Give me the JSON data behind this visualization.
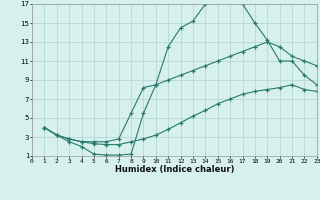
{
  "title": "",
  "xlabel": "Humidex (Indice chaleur)",
  "bg_color": "#d6f0ee",
  "grid_color": "#b8d8d4",
  "line_color": "#2a7a6a",
  "xlim": [
    0,
    23
  ],
  "ylim": [
    1,
    17
  ],
  "xticks": [
    0,
    1,
    2,
    3,
    4,
    5,
    6,
    7,
    8,
    9,
    10,
    11,
    12,
    13,
    14,
    15,
    16,
    17,
    18,
    19,
    20,
    21,
    22,
    23
  ],
  "yticks": [
    1,
    3,
    5,
    7,
    9,
    11,
    13,
    15,
    17
  ],
  "line1_x": [
    1,
    2,
    3,
    4,
    5,
    6,
    7,
    8,
    9,
    10,
    11,
    12,
    13,
    14,
    15,
    16,
    17,
    18,
    19,
    20,
    21,
    22,
    23
  ],
  "line1_y": [
    4.0,
    3.2,
    2.5,
    2.0,
    1.2,
    1.1,
    1.1,
    1.2,
    5.5,
    8.5,
    12.5,
    14.5,
    15.2,
    17.0,
    17.5,
    17.5,
    17.0,
    15.0,
    13.2,
    11.0,
    11.0,
    9.5,
    8.5
  ],
  "line2_x": [
    1,
    2,
    3,
    4,
    5,
    6,
    7,
    8,
    9,
    10,
    11,
    12,
    13,
    14,
    15,
    16,
    17,
    18,
    19,
    20,
    21,
    22,
    23
  ],
  "line2_y": [
    4.0,
    3.2,
    2.8,
    2.5,
    2.5,
    2.5,
    2.8,
    5.5,
    8.2,
    8.5,
    9.0,
    9.5,
    10.0,
    10.5,
    11.0,
    11.5,
    12.0,
    12.5,
    13.0,
    12.5,
    11.5,
    11.0,
    10.5
  ],
  "line3_x": [
    1,
    2,
    3,
    4,
    5,
    6,
    7,
    8,
    9,
    10,
    11,
    12,
    13,
    14,
    15,
    16,
    17,
    18,
    19,
    20,
    21,
    22,
    23
  ],
  "line3_y": [
    4.0,
    3.2,
    2.8,
    2.5,
    2.3,
    2.2,
    2.2,
    2.5,
    2.8,
    3.2,
    3.8,
    4.5,
    5.2,
    5.8,
    6.5,
    7.0,
    7.5,
    7.8,
    8.0,
    8.2,
    8.5,
    8.0,
    7.8
  ]
}
